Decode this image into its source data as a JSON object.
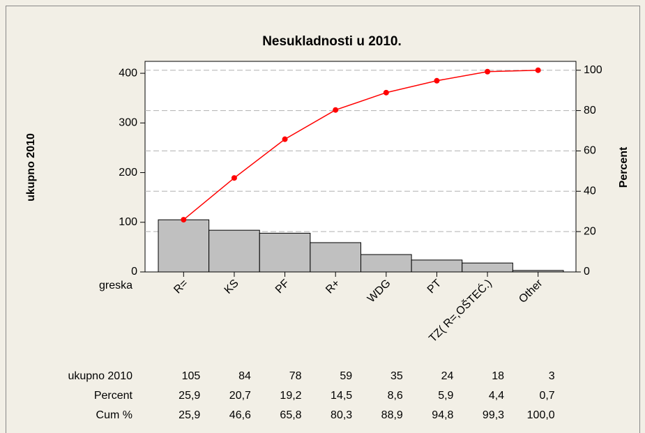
{
  "chart_data": {
    "type": "pareto",
    "title": "Nesukladnosti u 2010.",
    "ylabel": "ukupno 2010",
    "y2label": "Percent",
    "xlabel": "greska",
    "categories": [
      "R=",
      "KS",
      "PF",
      "R+",
      "WDG",
      "PT",
      "TZ( R=,OŠTEĆ.)",
      "Other"
    ],
    "series": [
      {
        "name": "ukupno 2010",
        "color": "#c0c0c0",
        "values": [
          105,
          84,
          78,
          59,
          35,
          24,
          18,
          3
        ]
      },
      {
        "name": "Percent",
        "values": [
          25.9,
          20.7,
          19.2,
          14.5,
          8.6,
          5.9,
          4.4,
          0.7
        ],
        "value_labels": [
          "25,9",
          "20,7",
          "19,2",
          "14,5",
          "8,6",
          "5,9",
          "4,4",
          "0,7"
        ]
      },
      {
        "name": "Cum %",
        "color": "#ff0000",
        "axis": "y2",
        "values": [
          25.9,
          46.6,
          65.8,
          80.3,
          88.9,
          94.8,
          99.3,
          100.0
        ],
        "value_labels": [
          "25,9",
          "46,6",
          "65,8",
          "80,3",
          "88,9",
          "94,8",
          "99,3",
          "100,0"
        ]
      }
    ],
    "ylim": [
      0,
      424
    ],
    "yticks": [
      0,
      100,
      200,
      300,
      400
    ],
    "y2lim": [
      0,
      104.4
    ],
    "y2ticks": [
      0,
      20,
      40,
      60,
      80,
      100
    ],
    "grid": true
  }
}
